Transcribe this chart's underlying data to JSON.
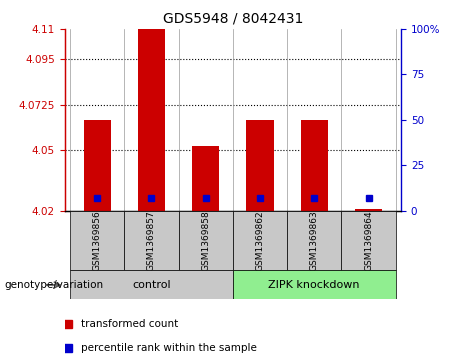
{
  "title": "GDS5948 / 8042431",
  "samples": [
    "GSM1369856",
    "GSM1369857",
    "GSM1369858",
    "GSM1369862",
    "GSM1369863",
    "GSM1369864"
  ],
  "red_bar_tops": [
    4.065,
    4.11,
    4.052,
    4.065,
    4.065,
    4.021
  ],
  "blue_square_values": [
    4.026,
    4.026,
    4.026,
    4.026,
    4.026,
    4.026
  ],
  "bar_bottom": 4.02,
  "ylim_left": [
    4.02,
    4.11
  ],
  "yticks_left": [
    4.02,
    4.05,
    4.0725,
    4.095,
    4.11
  ],
  "ytick_labels_left": [
    "4.02",
    "4.05",
    "4.0725",
    "4.095",
    "4.11"
  ],
  "ylim_right": [
    0,
    100
  ],
  "yticks_right": [
    0,
    25,
    50,
    75,
    100
  ],
  "ytick_labels_right": [
    "0",
    "25",
    "50",
    "75",
    "100%"
  ],
  "groups": [
    {
      "label": "control",
      "indices": [
        0,
        1,
        2
      ],
      "color": "#c8c8c8"
    },
    {
      "label": "ZIPK knockdown",
      "indices": [
        3,
        4,
        5
      ],
      "color": "#90ee90"
    }
  ],
  "left_label": "genotype/variation",
  "legend_red": "transformed count",
  "legend_blue": "percentile rank within the sample",
  "red_color": "#cc0000",
  "blue_color": "#0000cc",
  "left_axis_color": "#cc0000",
  "right_axis_color": "#0000cc",
  "sample_box_color": "#c8c8c8",
  "bar_width": 0.5
}
